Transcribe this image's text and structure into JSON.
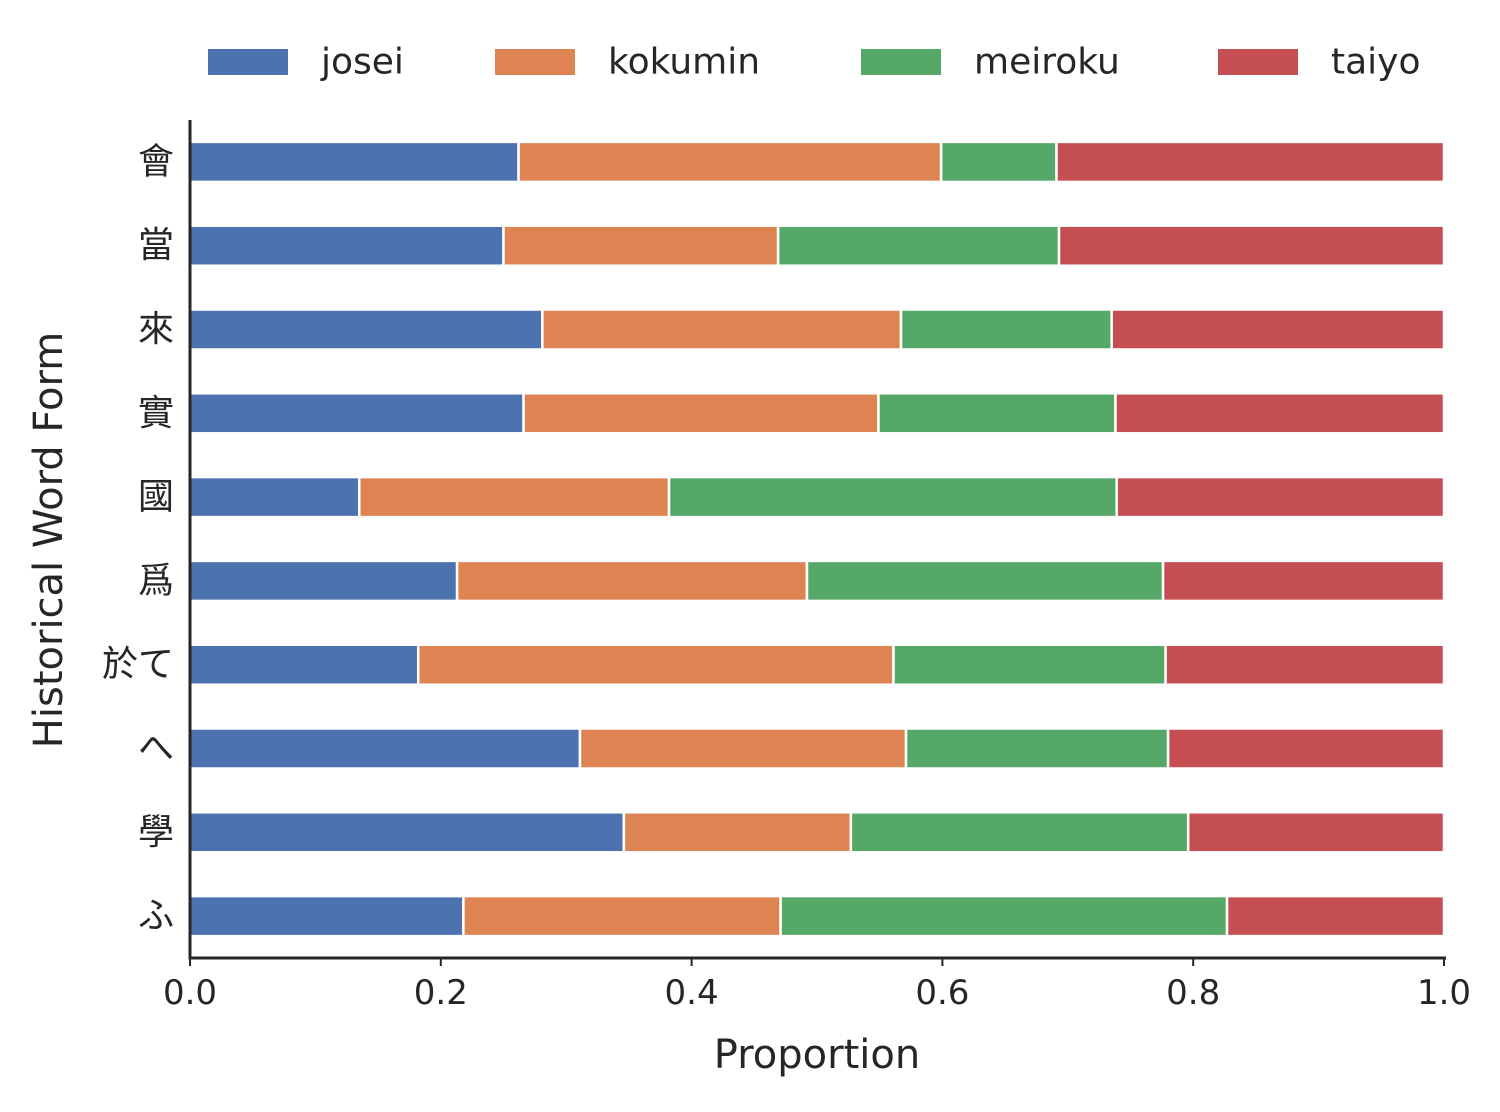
{
  "chart_data": {
    "type": "bar",
    "orientation": "horizontal",
    "stacked": true,
    "title": "",
    "xlabel": "Proportion",
    "ylabel": "Historical Word Form",
    "xlim": [
      0,
      1
    ],
    "xticks": [
      "0.0",
      "0.2",
      "0.4",
      "0.6",
      "0.8",
      "1.0"
    ],
    "xtick_values": [
      0,
      0.2,
      0.4,
      0.6,
      0.8,
      1.0
    ],
    "grid": false,
    "legend_position": "top",
    "categories": [
      "會",
      "當",
      "來",
      "實",
      "國",
      "爲",
      "於て",
      "へ",
      "學",
      "ふ"
    ],
    "series": [
      {
        "name": "josei",
        "color": "#4c72b0",
        "values": [
          0.262,
          0.25,
          0.281,
          0.266,
          0.135,
          0.213,
          0.182,
          0.311,
          0.346,
          0.218
        ]
      },
      {
        "name": "kokumin",
        "color": "#dd8452",
        "values": [
          0.337,
          0.219,
          0.286,
          0.283,
          0.247,
          0.279,
          0.379,
          0.26,
          0.181,
          0.253
        ]
      },
      {
        "name": "meiroku",
        "color": "#55a868",
        "values": [
          0.092,
          0.224,
          0.168,
          0.189,
          0.357,
          0.284,
          0.217,
          0.209,
          0.269,
          0.356
        ]
      },
      {
        "name": "taiyo",
        "color": "#c44e52",
        "values": [
          0.309,
          0.307,
          0.265,
          0.262,
          0.261,
          0.224,
          0.222,
          0.22,
          0.204,
          0.173
        ]
      }
    ]
  }
}
